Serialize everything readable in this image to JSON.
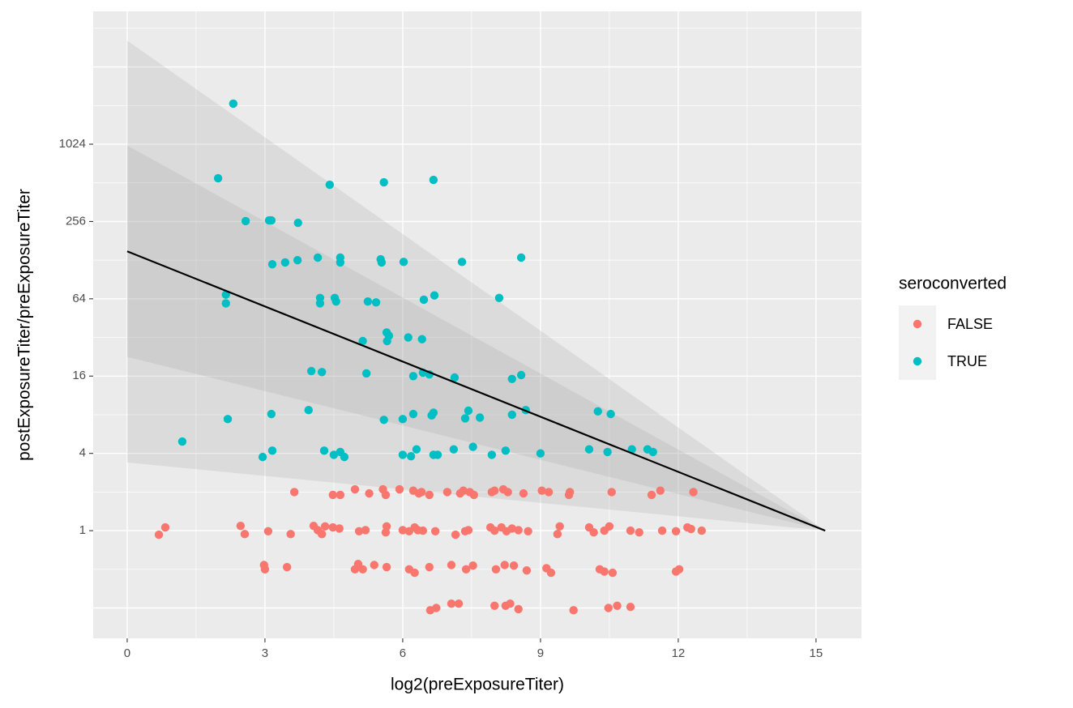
{
  "chart_data": {
    "type": "scatter",
    "x_label": "log2(preExposureTiter)",
    "y_label": "postExposureTiter/preExposureTiter",
    "xlim": [
      -0.74,
      15.99
    ],
    "ylim": [
      0.145,
      11100
    ],
    "y_scale": "log2",
    "xticks": [
      0,
      3,
      6,
      9,
      12,
      15
    ],
    "yticks": [
      1,
      4,
      16,
      64,
      256,
      1024
    ],
    "grid": true,
    "legend_title": "seroconverted",
    "legend_position": "right",
    "bands": [
      {
        "x": [
          0,
          15.2
        ],
        "lower": [
          3.4,
          1
        ],
        "upper": [
          6570,
          1
        ],
        "color": "#999999"
      },
      {
        "x": [
          0,
          15.2
        ],
        "lower": [
          22.6,
          1
        ],
        "upper": [
          1000,
          1
        ],
        "color": "#999999"
      }
    ],
    "fit": {
      "x": [
        0,
        15.2
      ],
      "values": [
        150,
        1
      ],
      "color": "#000000"
    },
    "series": [
      {
        "name": "FALSE",
        "color": "#F8766D",
        "x": [
          3.64,
          4.48,
          4.64,
          4.96,
          5.27,
          5.57,
          5.63,
          5.93,
          6.23,
          6.35,
          6.41,
          6.58,
          6.97,
          7.25,
          7.32,
          7.46,
          7.55,
          7.94,
          8.0,
          8.19,
          8.29,
          8.63,
          9.03,
          9.18,
          9.62,
          9.64,
          10.55,
          11.42,
          11.61,
          12.33,
          0.69,
          0.83,
          2.47,
          2.56,
          3.07,
          3.56,
          4.06,
          4.15,
          4.24,
          4.31,
          4.48,
          4.62,
          5.05,
          5.19,
          5.65,
          5.63,
          6.0,
          6.14,
          6.26,
          6.33,
          6.44,
          6.71,
          7.15,
          7.36,
          7.43,
          7.91,
          8.0,
          8.15,
          8.26,
          8.38,
          8.52,
          8.73,
          9.37,
          9.42,
          10.06,
          10.16,
          10.39,
          10.5,
          10.96,
          11.15,
          11.65,
          11.95,
          12.2,
          12.28,
          12.51,
          2.98,
          3.0,
          3.48,
          4.96,
          5.03,
          5.13,
          5.38,
          5.65,
          6.14,
          6.26,
          6.58,
          7.06,
          7.38,
          7.53,
          8.03,
          8.22,
          8.42,
          8.7,
          9.13,
          9.23,
          10.29,
          10.39,
          10.57,
          11.95,
          12.02,
          6.6,
          6.73,
          7.06,
          7.22,
          8.0,
          8.24,
          8.34,
          8.52,
          9.72,
          10.48,
          10.67,
          10.96
        ],
        "values": [
          2.0,
          1.9,
          1.9,
          2.1,
          1.95,
          2.1,
          1.9,
          2.1,
          2.05,
          1.95,
          2.0,
          1.9,
          2.0,
          1.95,
          2.05,
          2.0,
          1.9,
          2.0,
          2.05,
          2.1,
          2.0,
          1.95,
          2.05,
          2.0,
          1.9,
          2.0,
          2.0,
          1.9,
          2.05,
          2.0,
          0.93,
          1.06,
          1.09,
          0.94,
          0.99,
          0.94,
          1.09,
          1.01,
          0.94,
          1.08,
          1.06,
          1.04,
          0.99,
          1.01,
          1.08,
          0.97,
          1.01,
          0.99,
          1.06,
          1.01,
          1.0,
          0.99,
          0.93,
          0.99,
          1.01,
          1.06,
          1.0,
          1.06,
          0.99,
          1.04,
          1.01,
          0.99,
          0.94,
          1.08,
          1.06,
          0.97,
          1.0,
          1.08,
          1.0,
          0.97,
          1.0,
          0.99,
          1.06,
          1.03,
          1.0,
          0.54,
          0.5,
          0.52,
          0.5,
          0.55,
          0.5,
          0.54,
          0.52,
          0.5,
          0.47,
          0.52,
          0.54,
          0.5,
          0.535,
          0.5,
          0.54,
          0.535,
          0.49,
          0.51,
          0.47,
          0.5,
          0.48,
          0.47,
          0.48,
          0.5,
          0.24,
          0.25,
          0.27,
          0.27,
          0.26,
          0.26,
          0.27,
          0.245,
          0.24,
          0.25,
          0.26,
          0.255
        ]
      },
      {
        "name": "TRUE",
        "color": "#00BFC4",
        "x": [
          2.31,
          1.98,
          4.41,
          5.59,
          6.67,
          2.58,
          3.09,
          3.14,
          3.72,
          3.16,
          3.44,
          3.71,
          4.15,
          4.64,
          4.64,
          5.52,
          5.54,
          6.02,
          7.29,
          8.58,
          2.15,
          2.15,
          4.2,
          4.2,
          4.52,
          4.55,
          5.24,
          5.42,
          6.46,
          6.69,
          8.1,
          5.13,
          5.65,
          5.7,
          5.66,
          6.12,
          6.42,
          4.01,
          4.24,
          5.21,
          6.23,
          6.44,
          6.58,
          7.13,
          8.38,
          8.58,
          1.2,
          2.19,
          3.14,
          3.95,
          5.59,
          6.0,
          6.23,
          6.63,
          6.67,
          7.36,
          7.43,
          7.68,
          8.38,
          8.68,
          10.25,
          10.53,
          2.95,
          3.16,
          4.29,
          4.5,
          4.64,
          4.73,
          6.0,
          6.18,
          6.3,
          6.67,
          6.76,
          7.11,
          7.53,
          7.94,
          8.24,
          9.0,
          10.06,
          10.46,
          10.99,
          11.33,
          11.45
        ],
        "values": [
          2120,
          556,
          495,
          517,
          540,
          258,
          261,
          261,
          250,
          119,
          123,
          128,
          134,
          134,
          123,
          130,
          123,
          124,
          124,
          134,
          69,
          59,
          65,
          59,
          65,
          61,
          61,
          60,
          63,
          68,
          65,
          30,
          35,
          33,
          30,
          32,
          31,
          17.5,
          17.2,
          16.8,
          16,
          17,
          16.5,
          15.6,
          15.2,
          16.3,
          4.95,
          7.4,
          8.1,
          8.7,
          7.3,
          7.4,
          8.1,
          7.9,
          8.3,
          7.5,
          8.6,
          7.6,
          8.0,
          8.7,
          8.5,
          8.1,
          3.75,
          4.2,
          4.2,
          3.9,
          4.1,
          3.75,
          3.9,
          3.8,
          4.3,
          3.9,
          3.9,
          4.3,
          4.5,
          3.9,
          4.2,
          4.0,
          4.3,
          4.1,
          4.3,
          4.3,
          4.1
        ]
      }
    ]
  }
}
